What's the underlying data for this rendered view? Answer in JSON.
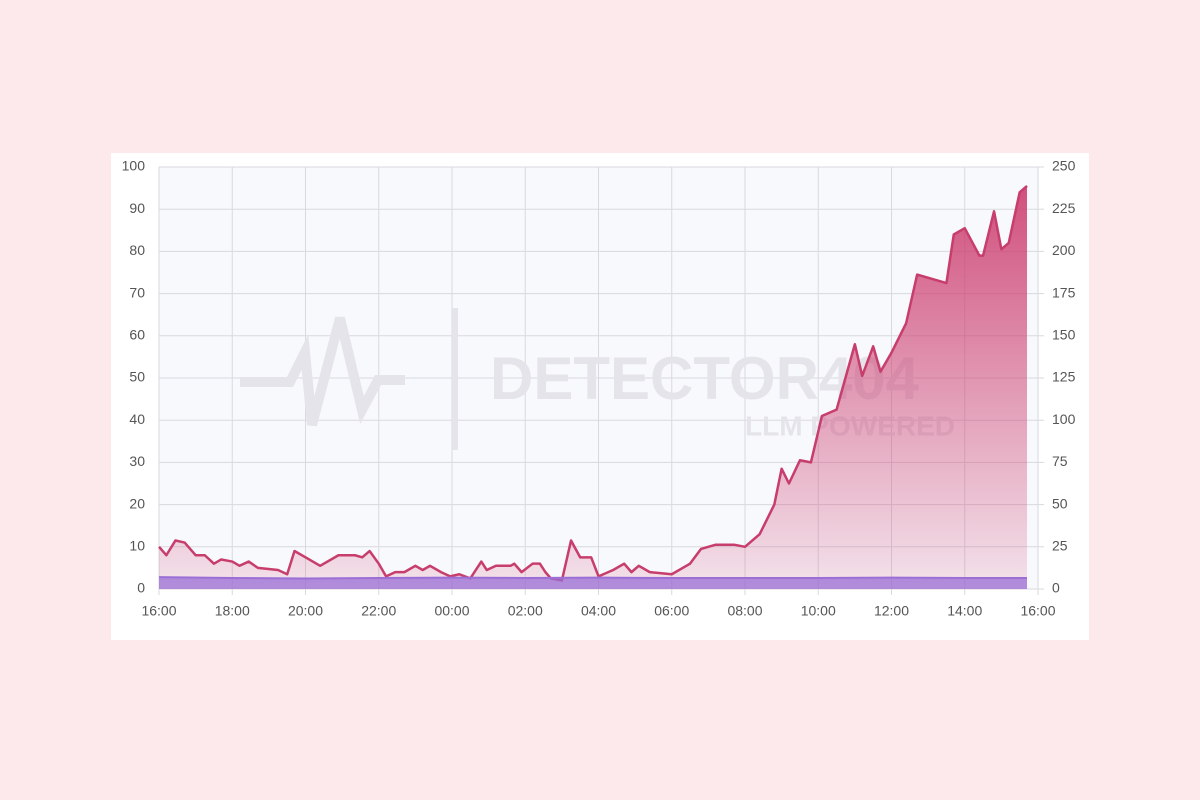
{
  "watermark": {
    "title": "DETECTOR404",
    "subtitle": "LLM POWERED"
  },
  "chart_data": {
    "type": "line",
    "grid": true,
    "xlim": [
      0,
      24
    ],
    "xticks": [
      {
        "value": 0,
        "label": "16:00"
      },
      {
        "value": 2,
        "label": "18:00"
      },
      {
        "value": 4,
        "label": "20:00"
      },
      {
        "value": 6,
        "label": "22:00"
      },
      {
        "value": 8,
        "label": "00:00"
      },
      {
        "value": 10,
        "label": "02:00"
      },
      {
        "value": 12,
        "label": "04:00"
      },
      {
        "value": 14,
        "label": "06:00"
      },
      {
        "value": 16,
        "label": "08:00"
      },
      {
        "value": 18,
        "label": "10:00"
      },
      {
        "value": 20,
        "label": "12:00"
      },
      {
        "value": 22,
        "label": "14:00"
      },
      {
        "value": 24,
        "label": "16:00"
      }
    ],
    "ylim": [
      0,
      100
    ],
    "yticks": [
      0,
      10,
      20,
      30,
      40,
      50,
      60,
      70,
      80,
      90,
      100
    ],
    "y2lim": [
      0,
      250
    ],
    "y2ticks": [
      0,
      25,
      50,
      75,
      100,
      125,
      150,
      175,
      200,
      225,
      250
    ],
    "series": [
      {
        "color": "#c73d6b",
        "x": [
          0,
          0.2,
          0.45,
          0.7,
          1.0,
          1.25,
          1.5,
          1.7,
          2.0,
          2.2,
          2.45,
          2.7,
          3.25,
          3.5,
          3.7,
          4.0,
          4.4,
          4.9,
          5.35,
          5.55,
          5.75,
          6.0,
          6.2,
          6.45,
          6.7,
          7.0,
          7.2,
          7.4,
          7.7,
          7.95,
          8.2,
          8.5,
          8.8,
          8.95,
          9.2,
          9.6,
          9.7,
          9.9,
          10.2,
          10.4,
          10.55,
          10.7,
          11.0,
          11.25,
          11.5,
          11.8,
          12.0,
          12.4,
          12.7,
          12.9,
          13.1,
          13.4,
          14.0,
          14.5,
          14.8,
          15.2,
          15.7,
          16.0,
          16.4,
          16.8,
          17.0,
          17.2,
          17.5,
          17.8,
          18.1,
          18.5,
          19.0,
          19.2,
          19.5,
          19.7,
          20.0,
          20.4,
          20.7,
          21.5,
          21.7,
          22.0,
          22.4,
          22.5,
          22.8,
          23.0,
          23.2,
          23.5,
          23.7
        ],
        "values": [
          10,
          8,
          11.5,
          11,
          8,
          8,
          6,
          7,
          6.5,
          5.5,
          6.5,
          5,
          4.5,
          3.5,
          9,
          7.5,
          5.5,
          8,
          8,
          7.5,
          9,
          6,
          3,
          4,
          4,
          5.5,
          4.5,
          5.5,
          4,
          3,
          3.5,
          2.5,
          6.5,
          4.5,
          5.5,
          5.5,
          6,
          4,
          6,
          6,
          4,
          2.5,
          2,
          11.5,
          7.5,
          7.5,
          3,
          4.5,
          6,
          4,
          5.5,
          4,
          3.5,
          6,
          9.5,
          10.5,
          10.5,
          10,
          13,
          20,
          28.5,
          25,
          30.5,
          30,
          41,
          42.5,
          58,
          50.5,
          57.5,
          51.5,
          56,
          63,
          74.5,
          72.5,
          84,
          85.5,
          79,
          79,
          89.5,
          80.5,
          82,
          94,
          95.5
        ]
      },
      {
        "color": "#9b6fd6",
        "x": [
          0,
          2,
          4,
          6,
          8,
          10,
          12,
          14,
          16,
          18,
          20,
          22,
          23.7
        ],
        "values": [
          2.8,
          2.6,
          2.5,
          2.6,
          2.7,
          2.6,
          2.7,
          2.6,
          2.6,
          2.6,
          2.7,
          2.6,
          2.6
        ]
      }
    ]
  }
}
